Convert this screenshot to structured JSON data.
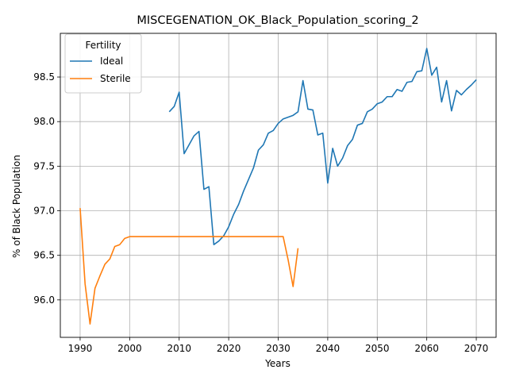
{
  "chart_data": {
    "type": "line",
    "title": "MISCEGENATION_OK_Black_Population_scoring_2",
    "xlabel": "Years",
    "ylabel": "% of Black Population",
    "xlim": [
      1986.0,
      2074.0
    ],
    "ylim": [
      95.58,
      98.99
    ],
    "xticks": [
      1990,
      2000,
      2010,
      2020,
      2030,
      2040,
      2050,
      2060,
      2070
    ],
    "xtick_labels": [
      "1990",
      "2000",
      "2010",
      "2020",
      "2030",
      "2040",
      "2050",
      "2060",
      "2070"
    ],
    "yticks": [
      96.0,
      96.5,
      97.0,
      97.5,
      98.0,
      98.5
    ],
    "ytick_labels": [
      "96.0",
      "96.5",
      "97.0",
      "97.5",
      "98.0",
      "98.5"
    ],
    "grid": true,
    "legend": {
      "title": "Fertility",
      "placement": "top-left"
    },
    "series": [
      {
        "name": "Ideal",
        "color": "#1f77b4",
        "x": [
          2008,
          2009,
          2010,
          2011,
          2012,
          2013,
          2014,
          2015,
          2016,
          2017,
          2018,
          2019,
          2020,
          2021,
          2022,
          2023,
          2024,
          2025,
          2026,
          2027,
          2028,
          2029,
          2030,
          2031,
          2032,
          2033,
          2034,
          2035,
          2036,
          2037,
          2038,
          2039,
          2040,
          2041,
          2042,
          2043,
          2044,
          2045,
          2046,
          2047,
          2048,
          2049,
          2050,
          2051,
          2052,
          2053,
          2054,
          2055,
          2056,
          2057,
          2058,
          2059,
          2060,
          2061,
          2062,
          2063,
          2064,
          2065,
          2066,
          2067,
          2068,
          2069,
          2070
        ],
        "values": [
          98.11,
          98.17,
          98.33,
          97.64,
          97.74,
          97.84,
          97.89,
          97.24,
          97.27,
          96.62,
          96.66,
          96.72,
          96.82,
          96.96,
          97.07,
          97.22,
          97.35,
          97.48,
          97.68,
          97.74,
          97.87,
          97.9,
          97.98,
          98.03,
          98.05,
          98.07,
          98.11,
          98.46,
          98.14,
          98.13,
          97.85,
          97.87,
          97.31,
          97.7,
          97.5,
          97.59,
          97.73,
          97.8,
          97.96,
          97.98,
          98.11,
          98.14,
          98.2,
          98.22,
          98.28,
          98.28,
          98.36,
          98.34,
          98.44,
          98.45,
          98.56,
          98.57,
          98.82,
          98.52,
          98.61,
          98.22,
          98.46,
          98.12,
          98.35,
          98.3,
          98.36,
          98.41,
          98.47
        ]
      },
      {
        "name": "Sterile",
        "color": "#ff7f0e",
        "x": [
          1990,
          1991,
          1992,
          1993,
          1994,
          1995,
          1996,
          1997,
          1998,
          1999,
          2000,
          2001,
          2002,
          2003,
          2004,
          2005,
          2006,
          2007,
          2008,
          2009,
          2010,
          2011,
          2012,
          2013,
          2014,
          2015,
          2016,
          2017,
          2018,
          2019,
          2020,
          2021,
          2022,
          2023,
          2024,
          2025,
          2026,
          2027,
          2028,
          2029,
          2030,
          2031,
          2032,
          2033,
          2034
        ],
        "values": [
          97.03,
          96.18,
          95.73,
          96.13,
          96.27,
          96.4,
          96.46,
          96.6,
          96.62,
          96.69,
          96.71,
          96.71,
          96.71,
          96.71,
          96.71,
          96.71,
          96.71,
          96.71,
          96.71,
          96.71,
          96.71,
          96.71,
          96.71,
          96.71,
          96.71,
          96.71,
          96.71,
          96.71,
          96.71,
          96.71,
          96.71,
          96.71,
          96.71,
          96.71,
          96.71,
          96.71,
          96.71,
          96.71,
          96.71,
          96.71,
          96.71,
          96.71,
          96.45,
          96.15,
          96.58
        ]
      }
    ]
  }
}
